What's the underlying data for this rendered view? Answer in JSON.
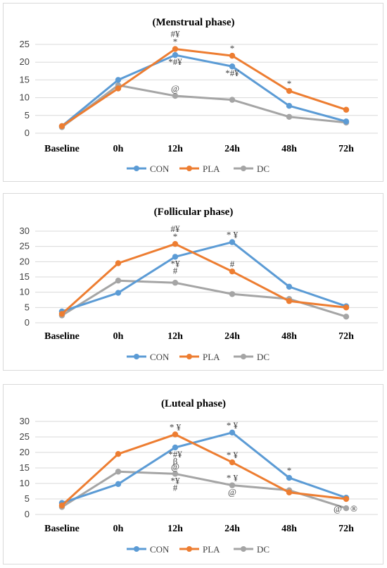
{
  "colors": {
    "CON": "#5b9bd5",
    "PLA": "#ed7d31",
    "DC": "#a5a5a5"
  },
  "chart_data": [
    {
      "type": "line",
      "title": "(Menstrual phase)",
      "categories": [
        "Baseline",
        "0h",
        "12h",
        "24h",
        "48h",
        "72h"
      ],
      "ylim": [
        0,
        25
      ],
      "yticks": [
        0,
        5,
        10,
        15,
        20,
        25
      ],
      "grid": true,
      "legend": "bottom",
      "series": [
        {
          "name": "CON",
          "values": [
            2.0,
            15.0,
            22.0,
            18.8,
            7.7,
            3.3
          ]
        },
        {
          "name": "PLA",
          "values": [
            2.0,
            12.6,
            23.7,
            21.8,
            11.9,
            6.6
          ]
        },
        {
          "name": "DC",
          "values": [
            1.7,
            13.5,
            10.5,
            9.4,
            4.6,
            3.0
          ]
        }
      ],
      "annotations": [
        {
          "text": "*",
          "series": "PLA",
          "x": "12h",
          "pos": "above"
        },
        {
          "text": "#¥",
          "series": "PLA",
          "x": "12h",
          "pos": "above2"
        },
        {
          "text": "*#¥",
          "series": "CON",
          "x": "12h",
          "pos": "below"
        },
        {
          "text": "*",
          "series": "PLA",
          "x": "24h",
          "pos": "above"
        },
        {
          "text": "*#¥",
          "series": "CON",
          "x": "24h",
          "pos": "below"
        },
        {
          "text": "*",
          "series": "PLA",
          "x": "48h",
          "pos": "above"
        },
        {
          "text": "@",
          "series": "DC",
          "x": "12h",
          "pos": "above"
        }
      ]
    },
    {
      "type": "line",
      "title": "(Follicular phase)",
      "categories": [
        "Baseline",
        "0h",
        "12h",
        "24h",
        "48h",
        "72h"
      ],
      "ylim": [
        0,
        30
      ],
      "yticks": [
        0,
        5,
        10,
        15,
        20,
        25,
        30
      ],
      "grid": true,
      "legend": "bottom",
      "series": [
        {
          "name": "CON",
          "values": [
            3.7,
            9.8,
            21.6,
            26.4,
            11.8,
            5.4
          ]
        },
        {
          "name": "PLA",
          "values": [
            2.9,
            19.5,
            25.8,
            16.8,
            7.1,
            5.0
          ]
        },
        {
          "name": "DC",
          "values": [
            2.4,
            13.8,
            13.1,
            9.4,
            7.8,
            2.0
          ]
        }
      ],
      "annotations": [
        {
          "text": "*",
          "series": "PLA",
          "x": "12h",
          "pos": "above"
        },
        {
          "text": "#¥",
          "series": "PLA",
          "x": "12h",
          "pos": "above2"
        },
        {
          "text": "*¥",
          "series": "CON",
          "x": "12h",
          "pos": "below"
        },
        {
          "text": "#",
          "series": "CON",
          "x": "12h",
          "pos": "below2"
        },
        {
          "text": "* ¥",
          "series": "CON",
          "x": "24h",
          "pos": "above"
        },
        {
          "text": "#",
          "series": "PLA",
          "x": "24h",
          "pos": "above"
        }
      ]
    },
    {
      "type": "line",
      "title": "(Luteal phase)",
      "categories": [
        "Baseline",
        "0h",
        "12h",
        "24h",
        "48h",
        "72h"
      ],
      "ylim": [
        0,
        30
      ],
      "yticks": [
        0,
        5,
        10,
        15,
        20,
        25,
        30
      ],
      "grid": true,
      "legend": "bottom",
      "series": [
        {
          "name": "CON",
          "values": [
            3.7,
            9.8,
            21.6,
            26.4,
            11.8,
            5.4
          ]
        },
        {
          "name": "PLA",
          "values": [
            2.9,
            19.5,
            25.8,
            16.8,
            7.1,
            5.0
          ]
        },
        {
          "name": "DC",
          "values": [
            2.4,
            13.8,
            13.1,
            9.4,
            7.8,
            2.0
          ]
        }
      ],
      "annotations": [
        {
          "text": "* ¥",
          "series": "PLA",
          "x": "12h",
          "pos": "above"
        },
        {
          "text": "*#¥",
          "series": "CON",
          "x": "12h",
          "pos": "below"
        },
        {
          "text": "β",
          "series": "CON",
          "x": "12h",
          "pos": "below2"
        },
        {
          "text": "@",
          "series": "DC",
          "x": "12h",
          "pos": "above"
        },
        {
          "text": "*¥",
          "series": "DC",
          "x": "12h",
          "pos": "below"
        },
        {
          "text": "#",
          "series": "DC",
          "x": "12h",
          "pos": "below2"
        },
        {
          "text": "* ¥",
          "series": "CON",
          "x": "24h",
          "pos": "above"
        },
        {
          "text": "* ¥",
          "series": "PLA",
          "x": "24h",
          "pos": "above"
        },
        {
          "text": "* ¥",
          "series": "DC",
          "x": "24h",
          "pos": "above"
        },
        {
          "text": "@",
          "series": "DC",
          "x": "24h",
          "pos": "below"
        },
        {
          "text": "*",
          "series": "CON",
          "x": "48h",
          "pos": "above"
        },
        {
          "text": "@",
          "series": "DC",
          "x": "72h",
          "pos": "left"
        },
        {
          "text": "®",
          "series": "DC",
          "x": "72h",
          "pos": "right"
        }
      ]
    }
  ]
}
